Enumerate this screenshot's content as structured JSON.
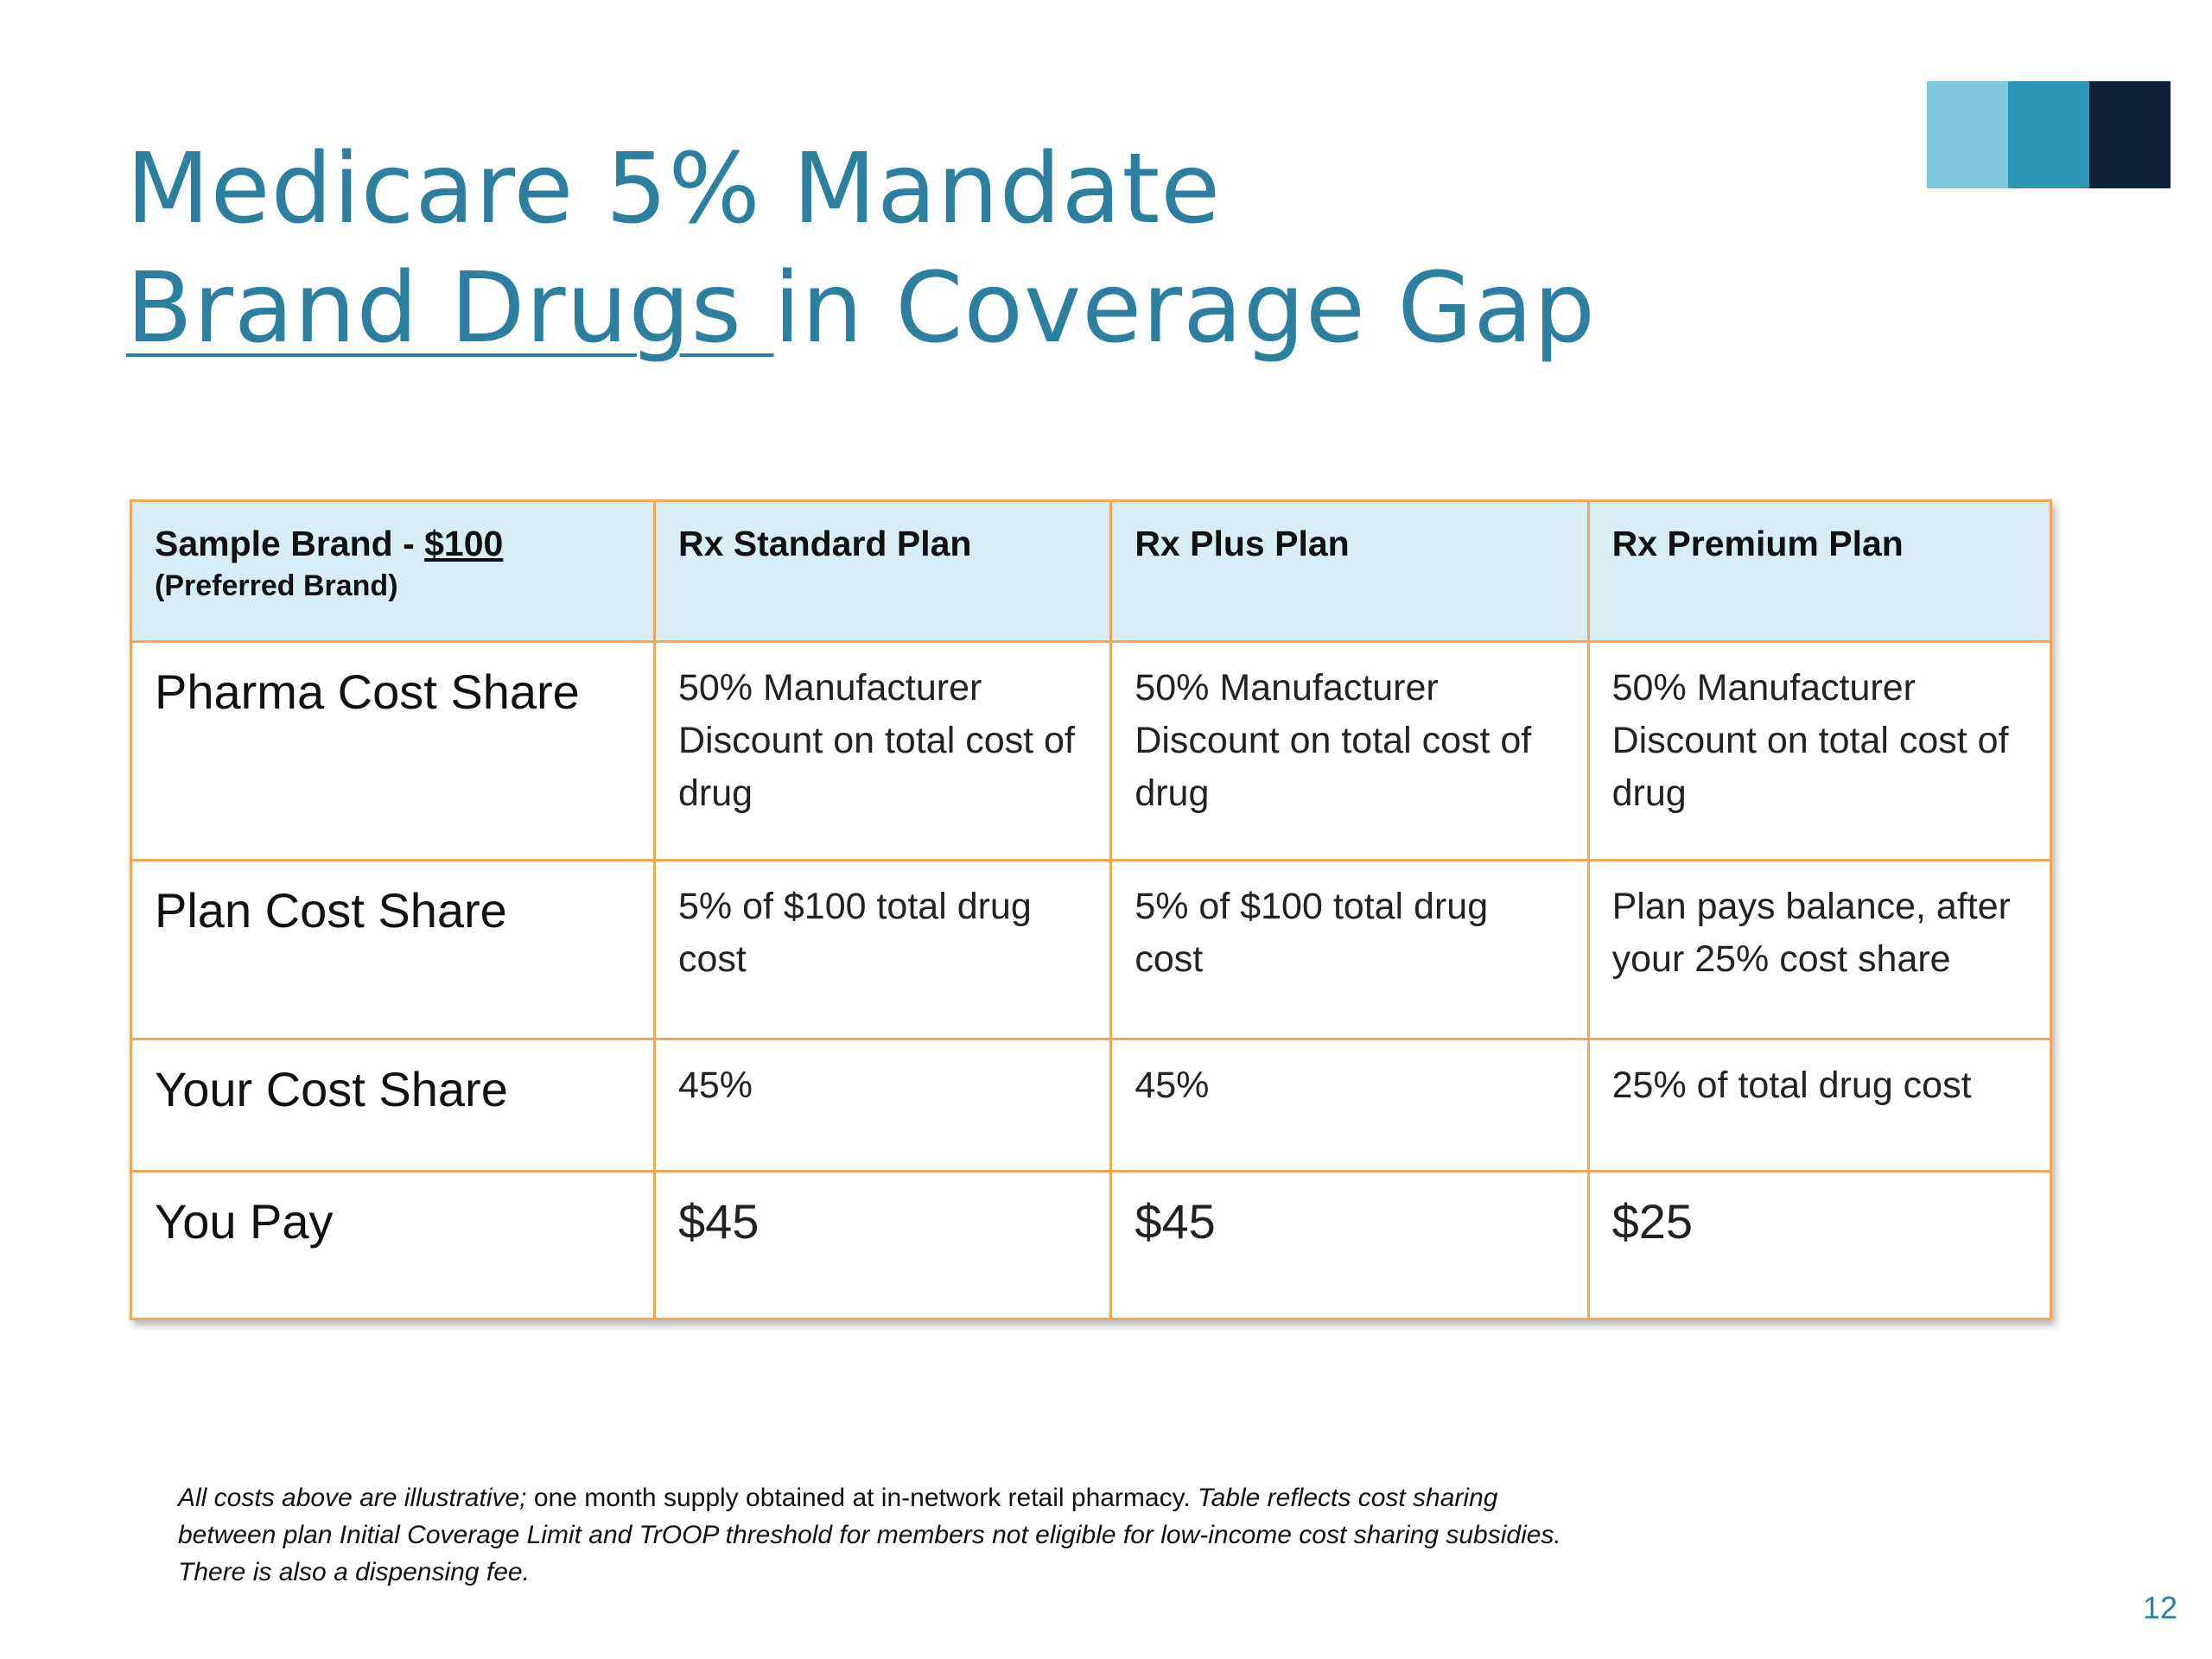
{
  "title": {
    "line1": "Medicare 5% Mandate",
    "line2_underlined": "Brand Drugs ",
    "line2_rest": "in Coverage Gap"
  },
  "table": {
    "corner": {
      "label": "Sample Brand  - ",
      "price": "$100",
      "sub": "(Preferred Brand)"
    },
    "columns": [
      "Rx Standard Plan",
      "Rx Plus Plan",
      "Rx Premium Plan"
    ],
    "rows": [
      {
        "label": "Pharma Cost Share",
        "cells": [
          "50% Manufacturer Discount on total cost of drug",
          "50% Manufacturer Discount on total cost of drug",
          "50% Manufacturer Discount on total cost of drug"
        ]
      },
      {
        "label": "Plan Cost Share",
        "cells": [
          "5% of $100 total drug cost",
          "5% of $100 total drug cost",
          "Plan pays balance, after your 25% cost share"
        ]
      },
      {
        "label": "Your Cost Share",
        "cells": [
          "45%",
          "45%",
          "25% of total drug cost"
        ]
      },
      {
        "label": "You Pay",
        "cells": [
          "$45",
          "$45",
          "$25"
        ]
      }
    ]
  },
  "footnote": {
    "part1": "All costs above are illustrative;",
    "part2": " one month supply obtained at in-network retail pharmacy.  ",
    "part3": "Table reflects cost sharing between plan Initial Coverage Limit and TrOOP threshold for members not eligible for low-income cost sharing subsidies.  There is also a dispensing fee."
  },
  "page_number": "12",
  "colors": {
    "title": "#2c7f9f",
    "header_fill": "#d8eef5",
    "border": "#f2a55b",
    "deco_light": "#7ec6dc",
    "deco_mid": "#2e98b6",
    "deco_dark": "#0f213b"
  }
}
